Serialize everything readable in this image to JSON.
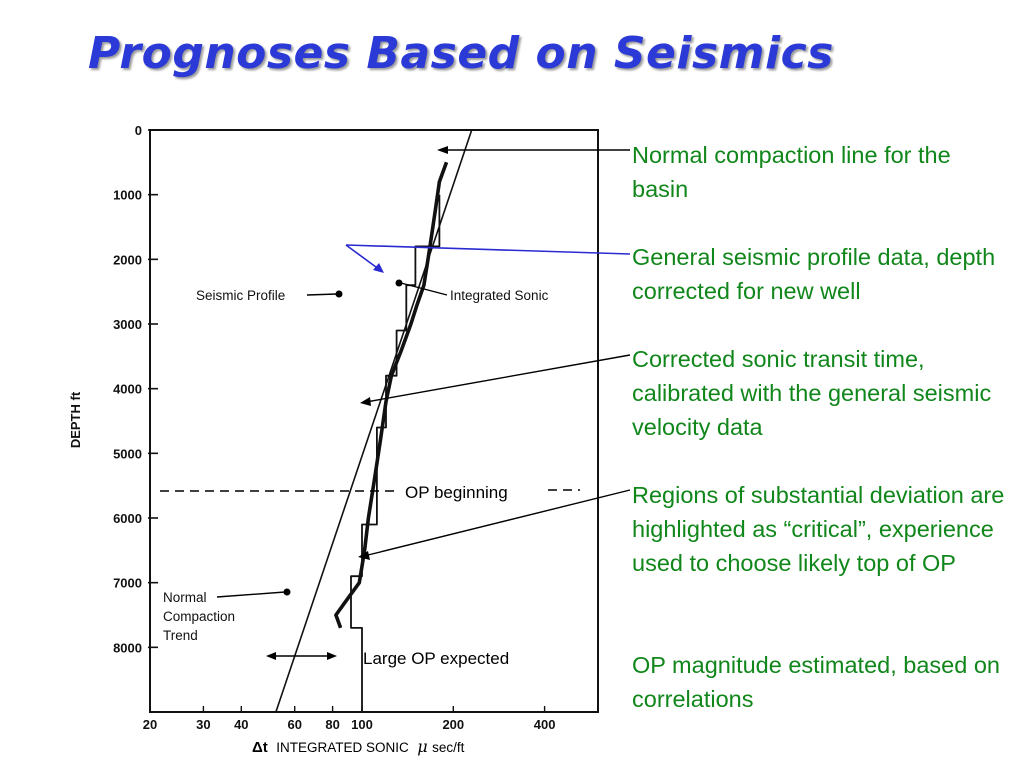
{
  "title": "Prognoses Based on Seismics",
  "chart_data": {
    "type": "line",
    "ylabel": "DEPTH ft",
    "xlabel_symbol": "Δt",
    "xlabel_text": "INTEGRATED SONIC",
    "xlabel_mu": "μ",
    "xlabel_unit": "sec/ft",
    "x_scale": "log",
    "xlim": [
      20,
      600
    ],
    "ylim": [
      9000,
      0
    ],
    "y_ticks": [
      "0",
      "1000",
      "2000",
      "3000",
      "4000",
      "5000",
      "6000",
      "7000",
      "8000"
    ],
    "x_ticks": [
      "20",
      "30",
      "40",
      "60",
      "80",
      "100",
      "200",
      "400"
    ],
    "series": [
      {
        "name": "Normal Compaction Trend",
        "points": [
          [
            52,
            9000
          ],
          [
            230,
            0
          ]
        ]
      },
      {
        "name": "Seismic Profile",
        "points": [
          [
            180,
            1000
          ],
          [
            180,
            1800
          ],
          [
            150,
            1800
          ],
          [
            150,
            2400
          ],
          [
            140,
            2400
          ],
          [
            140,
            3100
          ],
          [
            130,
            3100
          ],
          [
            130,
            3800
          ],
          [
            120,
            3800
          ],
          [
            120,
            4600
          ],
          [
            112,
            4600
          ],
          [
            112,
            5700
          ],
          [
            112,
            6100
          ],
          [
            100,
            6100
          ],
          [
            100,
            6900
          ],
          [
            92,
            6900
          ],
          [
            92,
            7700
          ],
          [
            100,
            7700
          ],
          [
            100,
            9000
          ]
        ]
      },
      {
        "name": "Integrated Sonic",
        "points": [
          [
            190,
            500
          ],
          [
            180,
            800
          ],
          [
            175,
            1200
          ],
          [
            170,
            1600
          ],
          [
            165,
            2000
          ],
          [
            160,
            2400
          ],
          [
            152,
            2700
          ],
          [
            145,
            3000
          ],
          [
            135,
            3400
          ],
          [
            125,
            3800
          ],
          [
            120,
            4200
          ],
          [
            115,
            4800
          ],
          [
            110,
            5400
          ],
          [
            105,
            6000
          ],
          [
            102,
            6500
          ],
          [
            98,
            7000
          ],
          [
            88,
            7300
          ],
          [
            82,
            7500
          ],
          [
            85,
            7700
          ]
        ]
      }
    ],
    "annotations": {
      "seismic_profile": "Seismic Profile",
      "integrated_sonic": "Integrated Sonic",
      "normal": "Normal",
      "compaction": "Compaction",
      "trend": "Trend",
      "op_beginning": "OP beginning",
      "large_op": "Large OP expected"
    }
  },
  "notes": [
    "Normal compaction line for the basin",
    "General seismic profile data, depth corrected for new well",
    "Corrected sonic transit time, calibrated with the general seismic velocity data",
    "Regions of substantial deviation are highlighted as “critical”, experience used to choose likely top of OP",
    "OP magnitude estimated, based on correlations"
  ],
  "colors": {
    "title": "#2b39d6",
    "notes": "#11871b",
    "pointer": "#2a2ad0"
  }
}
